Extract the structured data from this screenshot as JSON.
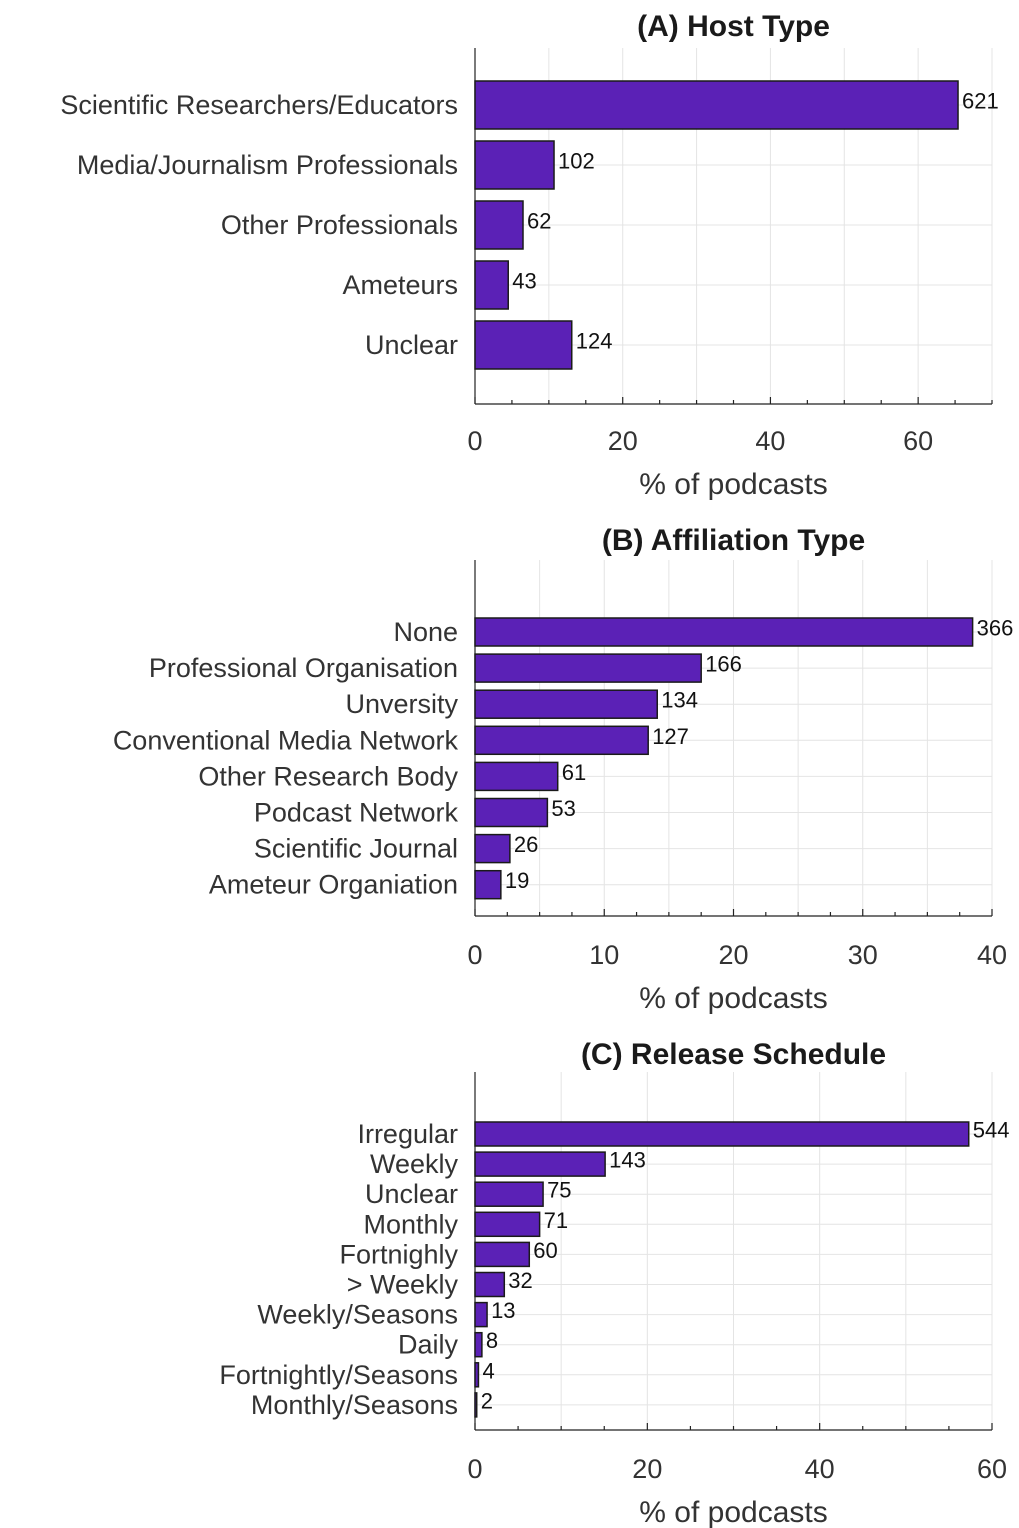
{
  "style": {
    "bar_color": "#5b21b6",
    "bar_edge_color": "#1a1a1a",
    "grid_color": "#e4e4e4"
  },
  "chart_data": [
    {
      "type": "bar",
      "orientation": "horizontal",
      "title": "(A) Host Type",
      "xlabel": "% of podcasts",
      "ylabel": "",
      "xlim": [
        0,
        70
      ],
      "xticks": [
        0,
        20,
        40,
        60
      ],
      "grid": true,
      "categories": [
        "Scientific Researchers/Educators",
        "Media/Journalism Professionals",
        "Other Professionals",
        "Ameteurs",
        "Unclear"
      ],
      "values": [
        65.4,
        10.7,
        6.5,
        4.5,
        13.1
      ],
      "data_labels": [
        "621",
        "102",
        "62",
        "43",
        "124"
      ]
    },
    {
      "type": "bar",
      "orientation": "horizontal",
      "title": "(B) Affiliation Type",
      "xlabel": "% of podcasts",
      "ylabel": "",
      "xlim": [
        0,
        40
      ],
      "xticks": [
        0,
        10,
        20,
        30,
        40
      ],
      "grid": true,
      "categories": [
        "None",
        "Professional Organisation",
        "Unversity",
        "Conventional Media Network",
        "Other Research Body",
        "Podcast Network",
        "Scientific Journal",
        "Ameteur Organiation"
      ],
      "values": [
        38.5,
        17.5,
        14.1,
        13.4,
        6.4,
        5.6,
        2.7,
        2.0
      ],
      "data_labels": [
        "366",
        "166",
        "134",
        "127",
        "61",
        "53",
        "26",
        "19"
      ]
    },
    {
      "type": "bar",
      "orientation": "horizontal",
      "title": "(C) Release Schedule",
      "xlabel": "% of podcasts",
      "ylabel": "",
      "xlim": [
        0,
        60
      ],
      "xticks": [
        0,
        20,
        40,
        60
      ],
      "grid": true,
      "categories": [
        "Irregular",
        "Weekly",
        "Unclear",
        "Monthly",
        "Fortnighly",
        "> Weekly",
        "Weekly/Seasons",
        "Daily",
        "Fortnightly/Seasons",
        "Monthly/Seasons"
      ],
      "values": [
        57.3,
        15.1,
        7.9,
        7.5,
        6.3,
        3.4,
        1.4,
        0.8,
        0.4,
        0.2
      ],
      "data_labels": [
        "544",
        "143",
        "75",
        "71",
        "60",
        "32",
        "13",
        "8",
        "4",
        "2"
      ]
    }
  ]
}
